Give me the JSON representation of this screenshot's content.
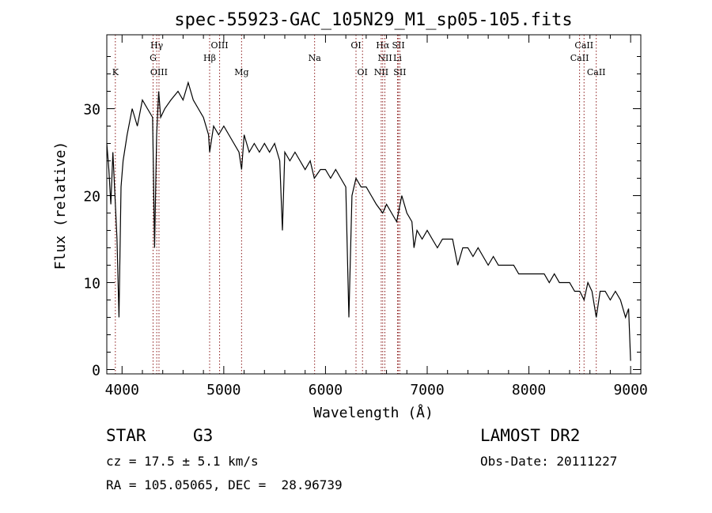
{
  "chart_data": {
    "type": "line",
    "title": "spec-55923-GAC_105N29_M1_sp05-105.fits",
    "xlabel": "Wavelength (Å)",
    "ylabel": "Flux (relative)",
    "xlim": [
      3850,
      9100
    ],
    "ylim": [
      -0.5,
      38.5
    ],
    "xticks": [
      4000,
      5000,
      6000,
      7000,
      8000,
      9000
    ],
    "yticks": [
      0,
      10,
      20,
      30
    ],
    "grid": false,
    "series": [
      {
        "color": "#000000",
        "x": [
          3850,
          3870,
          3890,
          3910,
          3930,
          3950,
          3970,
          3990,
          4010,
          4050,
          4100,
          4150,
          4200,
          4250,
          4300,
          4320,
          4340,
          4360,
          4380,
          4420,
          4480,
          4550,
          4600,
          4650,
          4700,
          4750,
          4800,
          4850,
          4861,
          4900,
          4950,
          5000,
          5050,
          5100,
          5150,
          5175,
          5200,
          5250,
          5300,
          5350,
          5400,
          5450,
          5500,
          5550,
          5577,
          5600,
          5650,
          5700,
          5750,
          5800,
          5850,
          5890,
          5950,
          6000,
          6050,
          6100,
          6150,
          6200,
          6230,
          6260,
          6300,
          6350,
          6400,
          6450,
          6500,
          6563,
          6600,
          6650,
          6700,
          6750,
          6800,
          6850,
          6870,
          6900,
          6950,
          7000,
          7050,
          7100,
          7150,
          7200,
          7250,
          7300,
          7350,
          7400,
          7450,
          7500,
          7550,
          7600,
          7650,
          7700,
          7750,
          7800,
          7850,
          7900,
          7950,
          8000,
          8050,
          8100,
          8150,
          8200,
          8250,
          8300,
          8350,
          8400,
          8450,
          8500,
          8542,
          8580,
          8620,
          8662,
          8700,
          8750,
          8800,
          8850,
          8900,
          8950,
          8980,
          9000
        ],
        "y": [
          26,
          23,
          19,
          25,
          20,
          15,
          6,
          21,
          24,
          27,
          30,
          28,
          31,
          30,
          29,
          14,
          27,
          32,
          29,
          30,
          31,
          32,
          31,
          33,
          31,
          30,
          29,
          27,
          25,
          28,
          27,
          28,
          27,
          26,
          25,
          23,
          27,
          25,
          26,
          25,
          26,
          25,
          26,
          24,
          16,
          25,
          24,
          25,
          24,
          23,
          24,
          22,
          23,
          23,
          22,
          23,
          22,
          21,
          6,
          20,
          22,
          21,
          21,
          20,
          19,
          18,
          19,
          18,
          17,
          20,
          18,
          17,
          14,
          16,
          15,
          16,
          15,
          14,
          15,
          15,
          15,
          12,
          14,
          14,
          13,
          14,
          13,
          12,
          13,
          12,
          12,
          12,
          12,
          11,
          11,
          11,
          11,
          11,
          11,
          10,
          11,
          10,
          10,
          10,
          9,
          9,
          8,
          10,
          9,
          6,
          9,
          9,
          8,
          9,
          8,
          6,
          7,
          1
        ]
      }
    ],
    "spectral_lines": [
      {
        "name": "K",
        "wavelength": 3934,
        "row": 3
      },
      {
        "name": "Hγ",
        "wavelength": 4341,
        "row": 1
      },
      {
        "name": "G",
        "wavelength": 4305,
        "row": 2
      },
      {
        "name": "OIII",
        "wavelength": 4363,
        "row": 3
      },
      {
        "name": "OIII",
        "wavelength": 4959,
        "row": 1
      },
      {
        "name": "Hβ",
        "wavelength": 4861,
        "row": 2
      },
      {
        "name": "Mg",
        "wavelength": 5175,
        "row": 3
      },
      {
        "name": "Na",
        "wavelength": 5893,
        "row": 2
      },
      {
        "name": "OI",
        "wavelength": 6300,
        "row": 1
      },
      {
        "name": "OI",
        "wavelength": 6364,
        "row": 3
      },
      {
        "name": "Hα",
        "wavelength": 6563,
        "row": 1
      },
      {
        "name": "SII",
        "wavelength": 6717,
        "row": 1
      },
      {
        "name": "NII",
        "wavelength": 6584,
        "row": 2
      },
      {
        "name": "Li",
        "wavelength": 6708,
        "row": 2
      },
      {
        "name": "NII",
        "wavelength": 6548,
        "row": 3
      },
      {
        "name": "SII",
        "wavelength": 6731,
        "row": 3
      },
      {
        "name": "CaII",
        "wavelength": 8542,
        "row": 1
      },
      {
        "name": "CaII",
        "wavelength": 8498,
        "row": 2
      },
      {
        "name": "CaII",
        "wavelength": 8662,
        "row": 3
      }
    ]
  },
  "info": {
    "class": "STAR",
    "subclass": "G3",
    "survey": "LAMOST DR2",
    "cz": "cz = 17.5 ± 5.1 km/s",
    "obs_date": "Obs-Date: 20111227",
    "coords": "RA = 105.05065, DEC =  28.96739"
  }
}
